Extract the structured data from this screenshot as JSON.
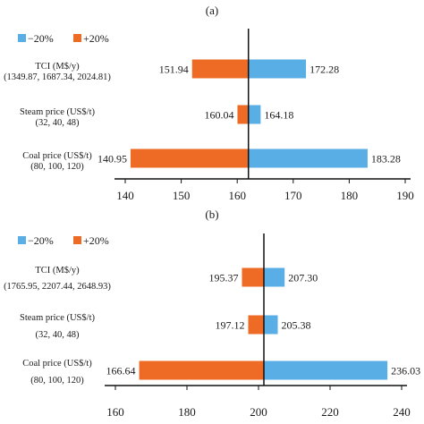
{
  "colors": {
    "minus": "#5aaee6",
    "plus": "#ed6b25",
    "axis": "#111111"
  },
  "chart_data": [
    {
      "type": "bar",
      "panel_label": "(a)",
      "orientation": "horizontal-tornado",
      "baseline": 162,
      "xlim": [
        140,
        190
      ],
      "xticks": [
        "140",
        "150",
        "160",
        "170",
        "180",
        "190"
      ],
      "legend": [
        {
          "name": "−20%",
          "color": "#5aaee6"
        },
        {
          "name": "+20%",
          "color": "#ed6b25"
        }
      ],
      "categories": [
        {
          "line1": "TCI (M$/y)",
          "line2": "(1349.87, 1687.34, 2024.81)",
          "minus": 172.28,
          "plus": 151.94,
          "minus_label": "172.28",
          "plus_label": "151.94"
        },
        {
          "line1": "Steam price (US$/t)",
          "line2": "(32, 40, 48)",
          "minus": 164.18,
          "plus": 160.04,
          "minus_label": "164.18",
          "plus_label": "160.04"
        },
        {
          "line1": "Coal price (US$/t)",
          "line2": "(80, 100, 120)",
          "minus": 183.28,
          "plus": 140.95,
          "minus_label": "183.28",
          "plus_label": "140.95"
        }
      ]
    },
    {
      "type": "bar",
      "panel_label": "(b)",
      "orientation": "horizontal-tornado",
      "baseline": 201.5,
      "xlim": [
        160,
        240
      ],
      "xticks": [
        "160",
        "180",
        "200",
        "220",
        "240"
      ],
      "legend": [
        {
          "name": "−20%",
          "color": "#5aaee6"
        },
        {
          "name": "+20%",
          "color": "#ed6b25"
        }
      ],
      "categories": [
        {
          "line1": "TCI (M$/y)",
          "line2": "(1765.95, 2207.44, 2648.93)",
          "minus": 207.3,
          "plus": 195.37,
          "minus_label": "207.30",
          "plus_label": "195.37"
        },
        {
          "line1": "Steam price (US$/t)",
          "line2": "(32, 40, 48)",
          "minus": 205.38,
          "plus": 197.12,
          "minus_label": "205.38",
          "plus_label": "197.12"
        },
        {
          "line1": "Coal price (US$/t)",
          "line2": "(80, 100, 120)",
          "minus": 236.03,
          "plus": 166.64,
          "minus_label": "236.03",
          "plus_label": "166.64"
        }
      ]
    }
  ]
}
